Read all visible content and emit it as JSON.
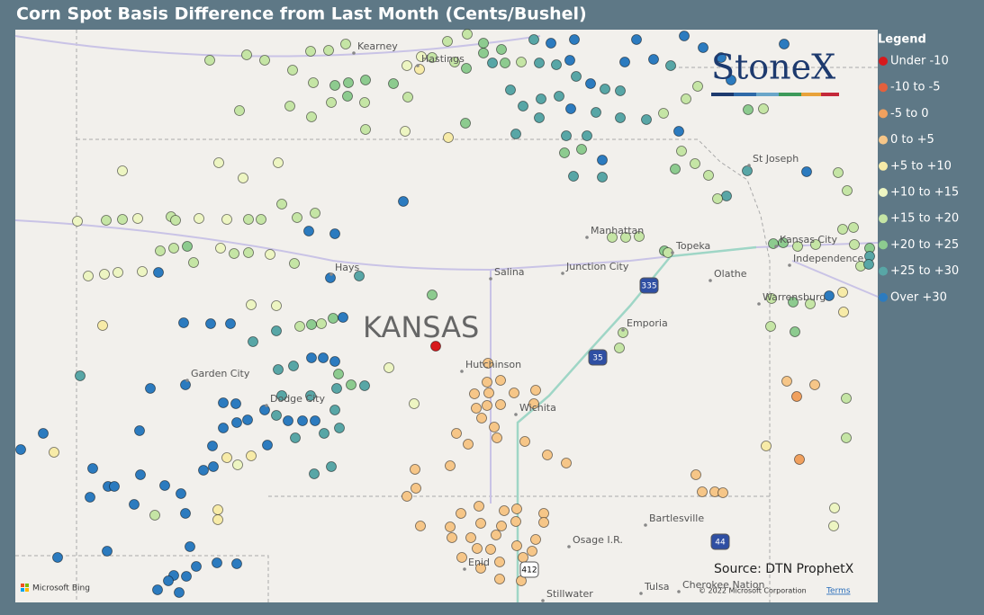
{
  "header": {
    "title": "Corn Spot Basis Difference from Last Month (Cents/Bushel)"
  },
  "legend": {
    "title": "Legend",
    "items": [
      {
        "label": "Under -10",
        "color": "#d7191c"
      },
      {
        "label": "-10 to -5",
        "color": "#e4603c"
      },
      {
        "label": "-5 to 0",
        "color": "#f0a05e"
      },
      {
        "label": "0 to +5",
        "color": "#f6c688"
      },
      {
        "label": "+5 to +10",
        "color": "#f7eba8"
      },
      {
        "label": "+10 to +15",
        "color": "#edf5c2"
      },
      {
        "label": "+15 to +20",
        "color": "#c5e5a5"
      },
      {
        "label": "+20 to +25",
        "color": "#8dcb8f"
      },
      {
        "label": "+25 to +30",
        "color": "#58a6a6"
      },
      {
        "label": "Over +30",
        "color": "#2c7bbf"
      }
    ]
  },
  "map": {
    "places": [
      "Kearney",
      "Hastings",
      "St Joseph",
      "Manhattan",
      "Topeka",
      "Kansas City",
      "Independence",
      "Hays",
      "Salina",
      "Junction City",
      "Olathe",
      "Warrensburg",
      "Emporia",
      "Garden City",
      "Dodge City",
      "Hutchinson",
      "Wichita",
      "Bartlesville",
      "Osage I.R.",
      "Enid",
      "Tulsa",
      "Cherokee Nation",
      "Stillwater"
    ],
    "state_label": "KANSAS",
    "highways": [
      "335",
      "35",
      "44",
      "412"
    ],
    "source": "Source: DTN ProphetX",
    "copyright": "© 2022 Microsoft Corporation",
    "terms": "Terms",
    "provider": "Microsoft Bing",
    "logo": "StoneX"
  }
}
